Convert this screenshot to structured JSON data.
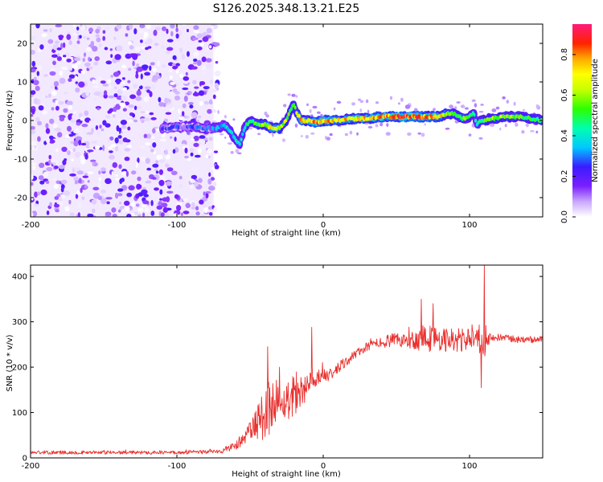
{
  "title": "S126.2025.348.13.21.E25",
  "chart_data": [
    {
      "type": "heatmap",
      "xlabel": "Height of straight line (km)",
      "ylabel": "Frequency (Hz)",
      "xlim": [
        -200,
        150
      ],
      "ylim": [
        -25,
        25
      ],
      "xticks": [
        -200,
        -100,
        0,
        100
      ],
      "xtick_labels": [
        "-200",
        "-100",
        "0",
        "100"
      ],
      "yticks": [
        -20,
        -10,
        0,
        10,
        20
      ],
      "ytick_labels": [
        "-20",
        "-10",
        "0",
        "10",
        "20"
      ],
      "colorbar": {
        "label": "Normalized spectral amplitude",
        "range": [
          0.0,
          0.95
        ],
        "ticks": [
          0.0,
          0.2,
          0.4,
          0.6,
          0.8
        ],
        "tick_labels": [
          "0.0",
          "0.2",
          "0.4",
          "0.6",
          "0.8"
        ]
      },
      "noise_region_x": [
        -200,
        -75
      ],
      "ridge": {
        "x": [
          -110,
          -90,
          -80,
          -72,
          -68,
          -63,
          -60,
          -57,
          -54,
          -50,
          -45,
          -40,
          -35,
          -30,
          -25,
          -22,
          -20,
          -18,
          -15,
          -10,
          -5,
          0,
          10,
          20,
          30,
          40,
          50,
          60,
          70,
          80,
          85,
          90,
          95,
          100,
          103,
          105,
          108,
          115,
          125,
          135,
          150
        ],
        "freq": [
          -2,
          -1.5,
          -2,
          -2,
          -1,
          -3,
          -5,
          -6,
          -2,
          0,
          -1,
          -1,
          -2,
          -2,
          0,
          3,
          4,
          2,
          0,
          0,
          -0.5,
          0,
          0,
          0.5,
          0.5,
          1,
          1,
          1,
          1,
          1,
          2,
          1.5,
          0.5,
          1,
          2,
          -1,
          0,
          0.5,
          1,
          1,
          0
        ],
        "amplitude": [
          0.25,
          0.3,
          0.3,
          0.35,
          0.35,
          0.4,
          0.45,
          0.4,
          0.45,
          0.5,
          0.55,
          0.65,
          0.75,
          0.7,
          0.6,
          0.55,
          0.6,
          0.7,
          0.8,
          0.75,
          0.85,
          0.8,
          0.75,
          0.75,
          0.75,
          0.8,
          0.9,
          0.9,
          0.8,
          0.75,
          0.6,
          0.55,
          0.6,
          0.5,
          0.45,
          0.4,
          0.5,
          0.6,
          0.6,
          0.55,
          0.5
        ]
      }
    },
    {
      "type": "line",
      "xlabel": "Height of straight line (km)",
      "ylabel": "SNR (10 * v/v)",
      "xlim": [
        -200,
        150
      ],
      "ylim": [
        0,
        425
      ],
      "xticks": [
        -200,
        -100,
        0,
        100
      ],
      "xtick_labels": [
        "-200",
        "-100",
        "0",
        "100"
      ],
      "yticks": [
        0,
        100,
        200,
        300,
        400
      ],
      "ytick_labels": [
        "0",
        "100",
        "200",
        "300",
        "400"
      ],
      "series": [
        {
          "name": "SNR",
          "color": "#e8302e",
          "x": [
            -200,
            -150,
            -100,
            -70,
            -62,
            -55,
            -50,
            -45,
            -40,
            -36,
            -32,
            -28,
            -24,
            -20,
            -15,
            -10,
            -5,
            0,
            5,
            10,
            15,
            20,
            25,
            30,
            35,
            40,
            45,
            50,
            55,
            60,
            65,
            70,
            75,
            80,
            85,
            90,
            95,
            100,
            105,
            108,
            110,
            112,
            115,
            120,
            130,
            140,
            150
          ],
          "base": [
            12,
            12,
            12,
            14,
            25,
            40,
            60,
            75,
            100,
            115,
            125,
            120,
            130,
            145,
            150,
            160,
            165,
            180,
            185,
            195,
            210,
            225,
            235,
            245,
            250,
            255,
            258,
            260,
            258,
            260,
            262,
            265,
            262,
            260,
            262,
            258,
            260,
            262,
            264,
            262,
            260,
            262,
            265,
            265,
            262,
            260,
            262
          ],
          "spread": [
            4,
            4,
            4,
            5,
            10,
            15,
            20,
            40,
            70,
            60,
            40,
            35,
            45,
            55,
            35,
            30,
            25,
            20,
            15,
            15,
            12,
            10,
            10,
            10,
            12,
            12,
            15,
            15,
            20,
            20,
            25,
            35,
            30,
            25,
            30,
            25,
            30,
            25,
            20,
            40,
            60,
            15,
            10,
            8,
            8,
            8,
            8
          ],
          "spikes": [
            {
              "x": -38,
              "y": 245
            },
            {
              "x": -30,
              "y": 200
            },
            {
              "x": -8,
              "y": 288
            },
            {
              "x": 67,
              "y": 350
            },
            {
              "x": 75,
              "y": 340
            },
            {
              "x": 110,
              "y": 425
            },
            {
              "x": 108,
              "y": 155
            }
          ]
        }
      ]
    }
  ]
}
